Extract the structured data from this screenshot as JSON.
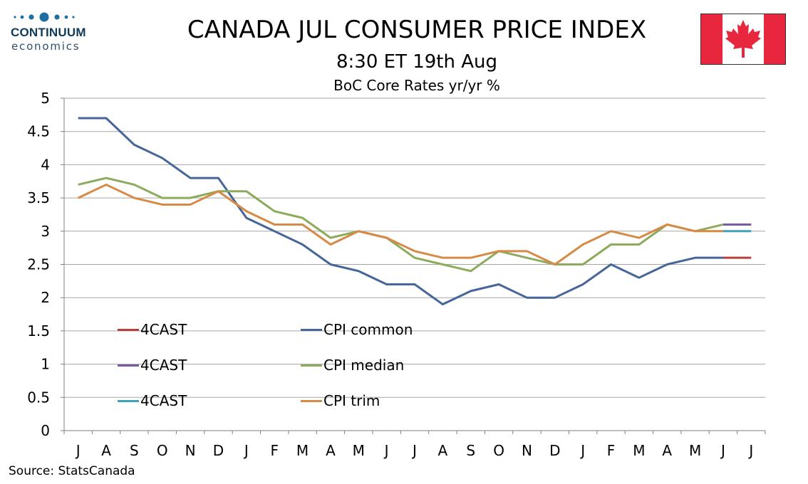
{
  "logo": {
    "line1": "CONTINUUM",
    "line2": "economics",
    "dot_color": "#1f6fa3"
  },
  "header": {
    "title": "CANADA JUL CONSUMER PRICE INDEX",
    "subtitle1": "8:30 ET 19th Aug",
    "subtitle2": "BoC Core Rates yr/yr %"
  },
  "flag": {
    "icon": "canada-flag-icon",
    "red": "#e8263d",
    "white": "#ffffff"
  },
  "source": "Source: StatsCanada",
  "chart_data": {
    "type": "line",
    "title": "",
    "xlabel": "",
    "ylabel": "",
    "ylim": [
      0,
      5
    ],
    "y_ticks": [
      "0",
      "0.5",
      "1",
      "1.5",
      "2",
      "2.5",
      "3",
      "3.5",
      "4",
      "4.5",
      "5"
    ],
    "grid": true,
    "categories": [
      "J",
      "A",
      "S",
      "O",
      "N",
      "D",
      "J",
      "F",
      "M",
      "A",
      "M",
      "J",
      "J",
      "A",
      "S",
      "O",
      "N",
      "D",
      "J",
      "F",
      "M",
      "A",
      "M",
      "J",
      "J"
    ],
    "series": [
      {
        "name": "CPI common",
        "color": "#46669a",
        "values": [
          4.7,
          4.7,
          4.3,
          4.1,
          3.8,
          3.8,
          3.2,
          3.0,
          2.8,
          2.5,
          2.4,
          2.2,
          2.2,
          1.9,
          2.1,
          2.2,
          2.0,
          2.0,
          2.2,
          2.5,
          2.3,
          2.5,
          2.6,
          2.6,
          null
        ]
      },
      {
        "name": "CPI median",
        "color": "#8cab5c",
        "values": [
          3.7,
          3.8,
          3.7,
          3.5,
          3.5,
          3.6,
          3.6,
          3.3,
          3.2,
          2.9,
          3.0,
          2.9,
          2.6,
          2.5,
          2.4,
          2.7,
          2.6,
          2.5,
          2.5,
          2.8,
          2.8,
          3.1,
          3.0,
          3.1,
          null
        ]
      },
      {
        "name": "CPI trim",
        "color": "#d78a45",
        "values": [
          3.5,
          3.7,
          3.5,
          3.4,
          3.4,
          3.6,
          3.3,
          3.1,
          3.1,
          2.8,
          3.0,
          2.9,
          2.7,
          2.6,
          2.6,
          2.7,
          2.7,
          2.5,
          2.8,
          3.0,
          2.9,
          3.1,
          3.0,
          3.0,
          null
        ]
      },
      {
        "name": "4CAST",
        "color": "#b8403a",
        "forecast_of": "CPI common",
        "values": [
          null,
          null,
          null,
          null,
          null,
          null,
          null,
          null,
          null,
          null,
          null,
          null,
          null,
          null,
          null,
          null,
          null,
          null,
          null,
          null,
          null,
          null,
          null,
          2.6,
          2.6
        ]
      },
      {
        "name": "4CAST",
        "color": "#7a5aa3",
        "forecast_of": "CPI median",
        "values": [
          null,
          null,
          null,
          null,
          null,
          null,
          null,
          null,
          null,
          null,
          null,
          null,
          null,
          null,
          null,
          null,
          null,
          null,
          null,
          null,
          null,
          null,
          null,
          3.1,
          3.1
        ]
      },
      {
        "name": "4CAST",
        "color": "#3fa3b8",
        "forecast_of": "CPI trim",
        "values": [
          null,
          null,
          null,
          null,
          null,
          null,
          null,
          null,
          null,
          null,
          null,
          null,
          null,
          null,
          null,
          null,
          null,
          null,
          null,
          null,
          null,
          null,
          null,
          3.0,
          3.0
        ]
      }
    ],
    "legend": {
      "placement": "inside-lower-left",
      "columns": [
        [
          "4CAST",
          "4CAST",
          "4CAST"
        ],
        [
          "CPI common",
          "CPI median",
          "CPI trim"
        ]
      ]
    },
    "gridline_color": "#a6a6a6",
    "axis_color": "#808080"
  }
}
